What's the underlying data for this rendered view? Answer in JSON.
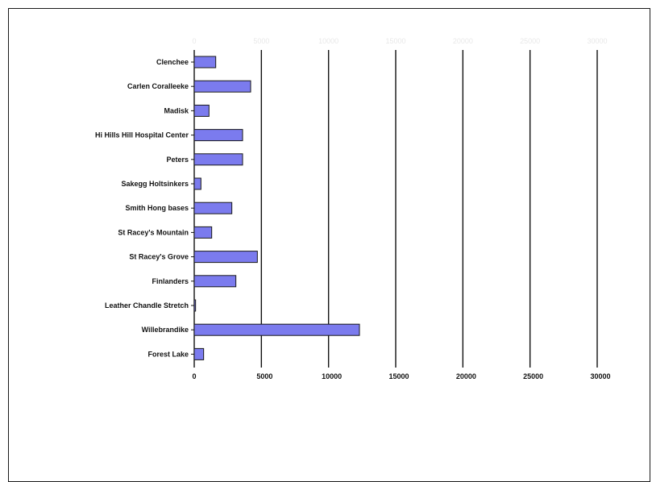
{
  "chart_data": {
    "type": "bar",
    "orientation": "horizontal",
    "categories": [
      "Clenchee",
      "Carlen Coralleeke",
      "Madisk",
      "Hi Hills Hill Hospital Center",
      "Peters",
      "Sakegg Holtsinkers",
      "Smith Hong bases",
      "St Racey's Mountain",
      "St Racey's Grove",
      "Finlanders",
      "Leather Chandle Stretch",
      "Willebrandike",
      "Forest Lake"
    ],
    "values": [
      1600,
      4200,
      1100,
      3600,
      3600,
      500,
      2800,
      1300,
      4700,
      3100,
      100,
      12300,
      700
    ],
    "xlim": [
      0,
      30000
    ],
    "xticks": [
      "0",
      "5000",
      "10000",
      "15000",
      "20000",
      "25000",
      "30000"
    ],
    "title": "",
    "xlabel": "",
    "ylabel": "",
    "grid": "vertical",
    "bar_color": "#7b7bee",
    "bar_edge": "#1a1a1a"
  }
}
